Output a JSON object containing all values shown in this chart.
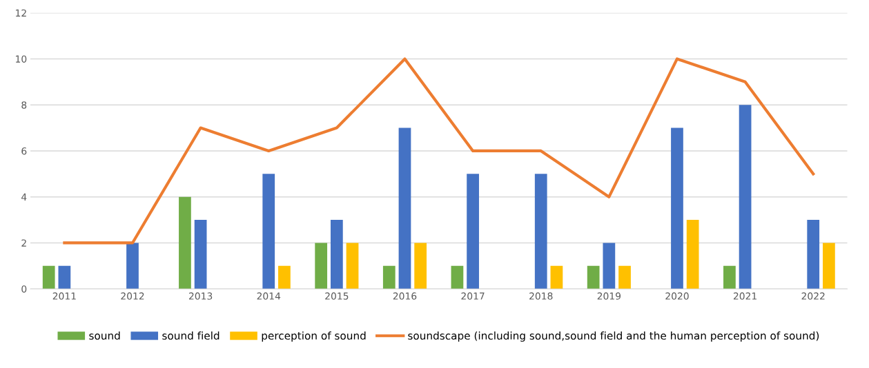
{
  "chart_data": {
    "type": "bar",
    "categories": [
      "2011",
      "2012",
      "2013",
      "2014",
      "2015",
      "2016",
      "2017",
      "2018",
      "2019",
      "2020",
      "2021",
      "2022"
    ],
    "series": [
      {
        "name": "sound",
        "color": "#70ad47",
        "values": [
          1,
          null,
          4,
          null,
          2,
          1,
          1,
          null,
          1,
          null,
          1,
          null
        ]
      },
      {
        "name": "sound field",
        "color": "#4472c4",
        "values": [
          1,
          2,
          3,
          5,
          3,
          7,
          5,
          5,
          2,
          7,
          8,
          3
        ]
      },
      {
        "name": "perception of sound",
        "color": "#ffc000",
        "values": [
          null,
          null,
          null,
          1,
          2,
          2,
          null,
          1,
          1,
          3,
          null,
          2
        ]
      },
      {
        "name": "soundscape (including sound,sound field and the human perception of sound)",
        "type": "line",
        "color": "#ed7d31",
        "values": [
          2,
          2,
          7,
          6,
          7,
          10,
          6,
          6,
          4,
          10,
          9,
          5
        ]
      }
    ],
    "ylim": [
      0,
      12
    ],
    "yticks": [
      0,
      2,
      4,
      6,
      8,
      10,
      12
    ],
    "grid": "y",
    "legend": "bottom",
    "marker": "none",
    "line_style": "solid"
  }
}
